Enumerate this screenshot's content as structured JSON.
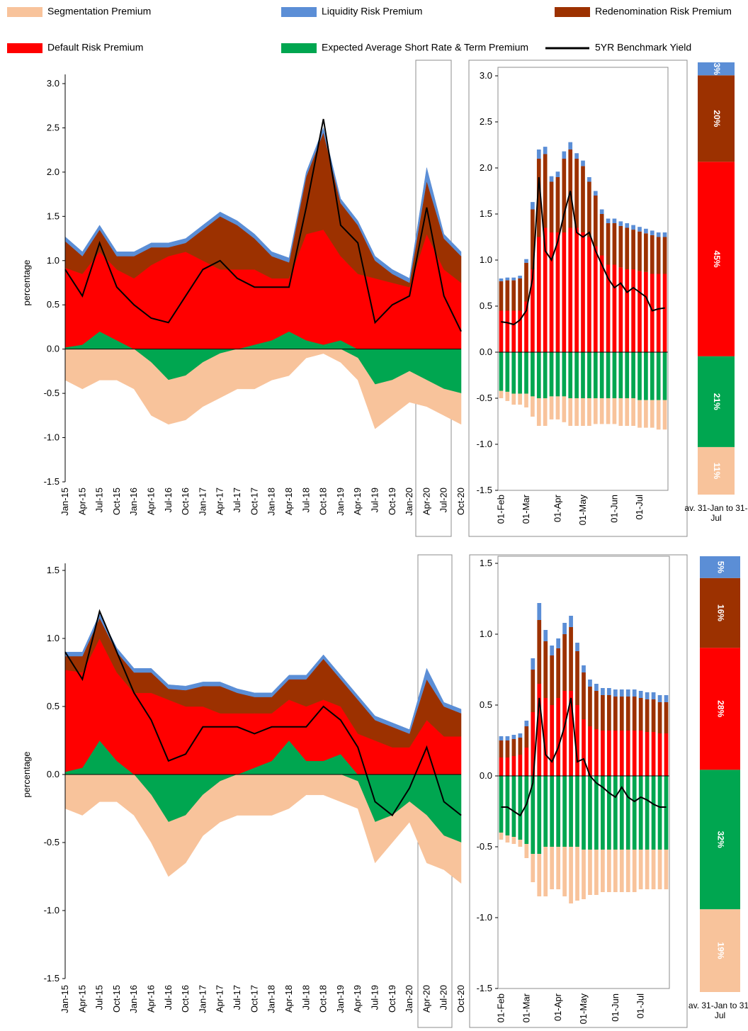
{
  "chart_data": [
    {
      "type": "area",
      "y_label": "percentage",
      "categories": [
        "Jan-15",
        "Apr-15",
        "Jul-15",
        "Oct-15",
        "Jan-16",
        "Apr-16",
        "Jul-16",
        "Oct-16",
        "Jan-17",
        "Apr-17",
        "Jul-17",
        "Oct-17",
        "Jan-18",
        "Apr-18",
        "Jul-18",
        "Oct-18",
        "Jan-19",
        "Apr-19",
        "Jul-19",
        "Oct-19",
        "Jan-20",
        "Apr-20",
        "Jul-20",
        "Oct-20"
      ],
      "ylim": [
        -1.5,
        3.0
      ],
      "yticks": [
        -1.5,
        {
          "value": -1,
          "label": "-1.0"
        },
        -0.5,
        {
          "value": 0,
          "label": "0.0"
        },
        0.5,
        {
          "value": 1,
          "label": "1.0"
        },
        1.5,
        {
          "value": 2,
          "label": "2.0"
        },
        2.5,
        {
          "value": 3,
          "label": "3.0"
        }
      ],
      "series": [
        {
          "name": "Segmentation Premium",
          "color": "#f8c39b",
          "values": [
            -0.35,
            -0.45,
            -0.35,
            -0.35,
            -0.45,
            -0.6,
            -0.5,
            -0.5,
            -0.5,
            -0.5,
            -0.45,
            -0.45,
            -0.35,
            -0.3,
            -0.1,
            -0.05,
            -0.15,
            -0.25,
            -0.5,
            -0.4,
            -0.35,
            -0.3,
            -0.3,
            -0.35
          ]
        },
        {
          "name": "Liquidity Risk Premium",
          "color": "#5b8ed6",
          "values": [
            0.05,
            0.05,
            0.05,
            0.05,
            0.05,
            0.05,
            0.05,
            0.05,
            0.05,
            0.05,
            0.05,
            0.05,
            0.05,
            0.05,
            0.05,
            0.05,
            0.05,
            0.05,
            0.05,
            0.05,
            0.05,
            0.15,
            0.05,
            0.05
          ]
        },
        {
          "name": "Redenomination Risk Premium",
          "color": "#9c3100",
          "values": [
            0.3,
            0.2,
            0.25,
            0.15,
            0.25,
            0.2,
            0.1,
            0.1,
            0.35,
            0.6,
            0.5,
            0.35,
            0.25,
            0.18,
            0.65,
            1.1,
            0.6,
            0.55,
            0.2,
            0.1,
            0.05,
            0.6,
            0.35,
            0.3
          ]
        },
        {
          "name": "Default Risk Premium",
          "color": "#ff0000",
          "values": [
            0.9,
            0.8,
            0.9,
            0.8,
            0.8,
            0.95,
            1.05,
            1.1,
            1.0,
            0.9,
            0.9,
            0.85,
            0.7,
            0.6,
            1.2,
            1.3,
            0.95,
            0.85,
            0.8,
            0.75,
            0.7,
            1.3,
            0.9,
            0.75
          ]
        },
        {
          "name": "Expected Average Short Rate & Term Premium",
          "color": "#00a650",
          "values": [
            0.02,
            0.05,
            0.2,
            0.1,
            0.0,
            -0.15,
            -0.35,
            -0.3,
            -0.15,
            -0.05,
            0.0,
            0.05,
            0.1,
            0.2,
            0.1,
            0.05,
            0.1,
            -0.1,
            -0.4,
            -0.35,
            -0.25,
            -0.35,
            -0.45,
            -0.5
          ]
        },
        {
          "name": "5YR Benchmark Yield",
          "color": "#000000",
          "type": "line",
          "values": [
            0.9,
            0.6,
            1.2,
            0.7,
            0.5,
            0.35,
            0.3,
            0.6,
            0.9,
            1.0,
            0.8,
            0.7,
            0.7,
            0.7,
            1.6,
            2.6,
            1.4,
            1.2,
            0.3,
            0.5,
            0.6,
            1.6,
            0.6,
            0.2
          ]
        }
      ]
    },
    {
      "type": "bar",
      "categories": [
        "01-Feb",
        null,
        null,
        null,
        "01-Mar",
        null,
        null,
        null,
        null,
        "01-Apr",
        null,
        null,
        null,
        "01-May",
        null,
        null,
        null,
        null,
        "01-Jun",
        null,
        null,
        null,
        "01-Jul",
        null,
        null,
        null,
        null
      ],
      "ylim": [
        -1.5,
        3.0
      ],
      "yticks": [
        -1.5,
        {
          "value": -1,
          "label": "-1.0"
        },
        -0.5,
        {
          "value": 0,
          "label": "0.0"
        },
        0.5,
        {
          "value": 1,
          "label": "1.0"
        },
        1.5,
        {
          "value": 2,
          "label": "2.0"
        },
        2.5,
        {
          "value": 3,
          "label": "3.0"
        }
      ],
      "series": [
        {
          "color": "#f8c39b",
          "values": [
            -0.08,
            -0.1,
            -0.12,
            -0.12,
            -0.15,
            -0.22,
            -0.3,
            -0.3,
            -0.25,
            -0.25,
            -0.28,
            -0.3,
            -0.3,
            -0.3,
            -0.3,
            -0.28,
            -0.28,
            -0.28,
            -0.28,
            -0.3,
            -0.3,
            -0.3,
            -0.3,
            -0.3,
            -0.3,
            -0.32,
            -0.32
          ]
        },
        {
          "color": "#5b8ed6",
          "values": [
            0.03,
            0.03,
            0.03,
            0.03,
            0.04,
            0.08,
            0.1,
            0.08,
            0.06,
            0.06,
            0.08,
            0.08,
            0.06,
            0.06,
            0.05,
            0.05,
            0.05,
            0.05,
            0.05,
            0.05,
            0.05,
            0.05,
            0.05,
            0.05,
            0.05,
            0.05,
            0.05
          ]
        },
        {
          "color": "#9c3100",
          "values": [
            0.32,
            0.33,
            0.33,
            0.35,
            0.42,
            0.65,
            0.85,
            0.8,
            0.55,
            0.6,
            0.8,
            0.85,
            0.75,
            0.72,
            0.6,
            0.55,
            0.45,
            0.45,
            0.45,
            0.45,
            0.45,
            0.43,
            0.43,
            0.42,
            0.42,
            0.4,
            0.4
          ]
        },
        {
          "color": "#ff0000",
          "values": [
            0.45,
            0.45,
            0.45,
            0.45,
            0.55,
            0.9,
            1.25,
            1.35,
            1.3,
            1.3,
            1.3,
            1.35,
            1.35,
            1.3,
            1.25,
            1.15,
            1.05,
            0.95,
            0.95,
            0.92,
            0.9,
            0.9,
            0.88,
            0.87,
            0.85,
            0.85,
            0.85
          ]
        },
        {
          "color": "#00a650",
          "values": [
            -0.42,
            -0.43,
            -0.45,
            -0.45,
            -0.45,
            -0.48,
            -0.5,
            -0.5,
            -0.48,
            -0.48,
            -0.48,
            -0.5,
            -0.5,
            -0.5,
            -0.5,
            -0.5,
            -0.5,
            -0.5,
            -0.5,
            -0.5,
            -0.5,
            -0.5,
            -0.52,
            -0.52,
            -0.52,
            -0.52,
            -0.52
          ]
        },
        {
          "color": "#000000",
          "type": "line",
          "values": [
            0.33,
            0.32,
            0.3,
            0.35,
            0.45,
            0.8,
            1.9,
            1.1,
            1.0,
            1.2,
            1.5,
            1.75,
            1.3,
            1.25,
            1.3,
            1.1,
            0.95,
            0.8,
            0.7,
            0.75,
            0.65,
            0.7,
            0.65,
            0.6,
            0.45,
            0.47,
            0.48
          ]
        }
      ]
    },
    {
      "type": "bar",
      "categories": [
        "av. 31-Jan to 31-Jul"
      ],
      "series": [
        {
          "color": "#f8c39b",
          "values": [
            11
          ],
          "value_labels": [
            "11%"
          ]
        },
        {
          "color": "#5b8ed6",
          "values": [
            3
          ],
          "value_labels": [
            "3%"
          ]
        },
        {
          "color": "#9c3100",
          "values": [
            20
          ],
          "value_labels": [
            "20%"
          ]
        },
        {
          "color": "#ff0000",
          "values": [
            45
          ],
          "value_labels": [
            "45%"
          ]
        },
        {
          "color": "#00a650",
          "values": [
            21
          ],
          "value_labels": [
            "21%"
          ]
        }
      ]
    },
    {
      "type": "area",
      "y_label": "percentage",
      "categories": [
        "Jan-15",
        "Apr-15",
        "Jul-15",
        "Oct-15",
        "Jan-16",
        "Apr-16",
        "Jul-16",
        "Oct-16",
        "Jan-17",
        "Apr-17",
        "Jul-17",
        "Oct-17",
        "Jan-18",
        "Apr-18",
        "Jul-18",
        "Oct-18",
        "Jan-19",
        "Apr-19",
        "Jul-19",
        "Oct-19",
        "Jan-20",
        "Apr-20",
        "Jul-20",
        "Oct-20"
      ],
      "ylim": [
        -1.5,
        1.5
      ],
      "yticks": [
        -1.5,
        {
          "value": -1,
          "label": "-1.0"
        },
        -0.5,
        {
          "value": 0,
          "label": "0.0"
        },
        0.5,
        {
          "value": 1,
          "label": "1.0"
        },
        1.5
      ],
      "series": [
        {
          "color": "#f8c39b",
          "values": [
            -0.25,
            -0.3,
            -0.2,
            -0.2,
            -0.3,
            -0.35,
            -0.4,
            -0.35,
            -0.3,
            -0.3,
            -0.3,
            -0.3,
            -0.3,
            -0.25,
            -0.15,
            -0.15,
            -0.2,
            -0.2,
            -0.3,
            -0.2,
            -0.15,
            -0.35,
            -0.25,
            -0.3
          ]
        },
        {
          "color": "#5b8ed6",
          "values": [
            0.03,
            0.03,
            0.03,
            0.03,
            0.03,
            0.03,
            0.03,
            0.03,
            0.03,
            0.03,
            0.03,
            0.03,
            0.03,
            0.03,
            0.03,
            0.03,
            0.03,
            0.03,
            0.03,
            0.03,
            0.03,
            0.08,
            0.03,
            0.03
          ]
        },
        {
          "color": "#9c3100",
          "values": [
            0.1,
            0.12,
            0.15,
            0.15,
            0.15,
            0.15,
            0.08,
            0.12,
            0.15,
            0.2,
            0.15,
            0.12,
            0.12,
            0.15,
            0.2,
            0.3,
            0.2,
            0.25,
            0.15,
            0.15,
            0.1,
            0.3,
            0.22,
            0.17
          ]
        },
        {
          "color": "#ff0000",
          "values": [
            0.75,
            0.7,
            0.75,
            0.65,
            0.6,
            0.6,
            0.55,
            0.5,
            0.5,
            0.45,
            0.45,
            0.4,
            0.35,
            0.3,
            0.4,
            0.45,
            0.35,
            0.3,
            0.25,
            0.2,
            0.2,
            0.4,
            0.28,
            0.28
          ]
        },
        {
          "color": "#00a650",
          "values": [
            0.02,
            0.05,
            0.25,
            0.1,
            0.0,
            -0.15,
            -0.35,
            -0.3,
            -0.15,
            -0.05,
            0.0,
            0.05,
            0.1,
            0.25,
            0.1,
            0.1,
            0.15,
            -0.05,
            -0.35,
            -0.3,
            -0.2,
            -0.3,
            -0.45,
            -0.5
          ]
        },
        {
          "color": "#000000",
          "type": "line",
          "values": [
            0.9,
            0.7,
            1.2,
            0.9,
            0.6,
            0.4,
            0.1,
            0.15,
            0.35,
            0.35,
            0.35,
            0.3,
            0.35,
            0.35,
            0.35,
            0.5,
            0.4,
            0.2,
            -0.2,
            -0.3,
            -0.1,
            0.2,
            -0.2,
            -0.3
          ]
        }
      ]
    },
    {
      "type": "bar",
      "categories": [
        "01-Feb",
        null,
        null,
        null,
        "01-Mar",
        null,
        null,
        null,
        null,
        "01-Apr",
        null,
        null,
        null,
        "01-May",
        null,
        null,
        null,
        null,
        "01-Jun",
        null,
        null,
        null,
        "01-Jul",
        null,
        null,
        null,
        null
      ],
      "ylim": [
        -1.5,
        1.5
      ],
      "yticks": [
        -1.5,
        {
          "value": -1,
          "label": "-1.0"
        },
        -0.5,
        {
          "value": 0,
          "label": "0.0"
        },
        0.5,
        {
          "value": 1,
          "label": "1.0"
        },
        1.5
      ],
      "series": [
        {
          "color": "#f8c39b",
          "values": [
            -0.05,
            -0.05,
            -0.05,
            -0.05,
            -0.1,
            -0.2,
            -0.3,
            -0.35,
            -0.3,
            -0.3,
            -0.35,
            -0.4,
            -0.38,
            -0.35,
            -0.32,
            -0.32,
            -0.3,
            -0.3,
            -0.3,
            -0.3,
            -0.3,
            -0.3,
            -0.28,
            -0.28,
            -0.28,
            -0.28,
            -0.28
          ]
        },
        {
          "color": "#5b8ed6",
          "values": [
            0.03,
            0.03,
            0.03,
            0.03,
            0.04,
            0.08,
            0.12,
            0.08,
            0.07,
            0.07,
            0.08,
            0.08,
            0.06,
            0.05,
            0.05,
            0.05,
            0.05,
            0.05,
            0.05,
            0.05,
            0.05,
            0.05,
            0.05,
            0.05,
            0.05,
            0.05,
            0.05
          ]
        },
        {
          "color": "#9c3100",
          "values": [
            0.12,
            0.12,
            0.12,
            0.12,
            0.15,
            0.3,
            0.45,
            0.4,
            0.35,
            0.35,
            0.4,
            0.45,
            0.38,
            0.33,
            0.28,
            0.27,
            0.25,
            0.25,
            0.24,
            0.24,
            0.24,
            0.24,
            0.23,
            0.23,
            0.23,
            0.22,
            0.22
          ]
        },
        {
          "color": "#ff0000",
          "values": [
            0.13,
            0.13,
            0.14,
            0.15,
            0.2,
            0.45,
            0.65,
            0.55,
            0.5,
            0.55,
            0.6,
            0.6,
            0.5,
            0.4,
            0.35,
            0.33,
            0.32,
            0.32,
            0.32,
            0.32,
            0.32,
            0.32,
            0.32,
            0.31,
            0.31,
            0.3,
            0.3
          ]
        },
        {
          "color": "#00a650",
          "values": [
            -0.4,
            -0.42,
            -0.43,
            -0.45,
            -0.48,
            -0.55,
            -0.55,
            -0.5,
            -0.5,
            -0.5,
            -0.5,
            -0.5,
            -0.5,
            -0.52,
            -0.52,
            -0.52,
            -0.52,
            -0.52,
            -0.52,
            -0.52,
            -0.52,
            -0.52,
            -0.52,
            -0.52,
            -0.52,
            -0.52,
            -0.52
          ]
        },
        {
          "color": "#000000",
          "type": "line",
          "values": [
            -0.22,
            -0.22,
            -0.25,
            -0.28,
            -0.2,
            -0.05,
            0.55,
            0.15,
            0.1,
            0.2,
            0.35,
            0.55,
            0.1,
            0.12,
            0.0,
            -0.05,
            -0.08,
            -0.12,
            -0.15,
            -0.08,
            -0.15,
            -0.18,
            -0.15,
            -0.17,
            -0.2,
            -0.22,
            -0.22
          ]
        }
      ]
    },
    {
      "type": "bar",
      "categories": [
        "av. 31-Jan to 31-Jul"
      ],
      "series": [
        {
          "color": "#f8c39b",
          "values": [
            19
          ],
          "value_labels": [
            "19%"
          ]
        },
        {
          "color": "#5b8ed6",
          "values": [
            5
          ],
          "value_labels": [
            "5%"
          ]
        },
        {
          "color": "#9c3100",
          "values": [
            16
          ],
          "value_labels": [
            "16%"
          ]
        },
        {
          "color": "#ff0000",
          "values": [
            28
          ],
          "value_labels": [
            "28%"
          ]
        },
        {
          "color": "#00a650",
          "values": [
            32
          ],
          "value_labels": [
            "32%"
          ]
        }
      ]
    }
  ]
}
